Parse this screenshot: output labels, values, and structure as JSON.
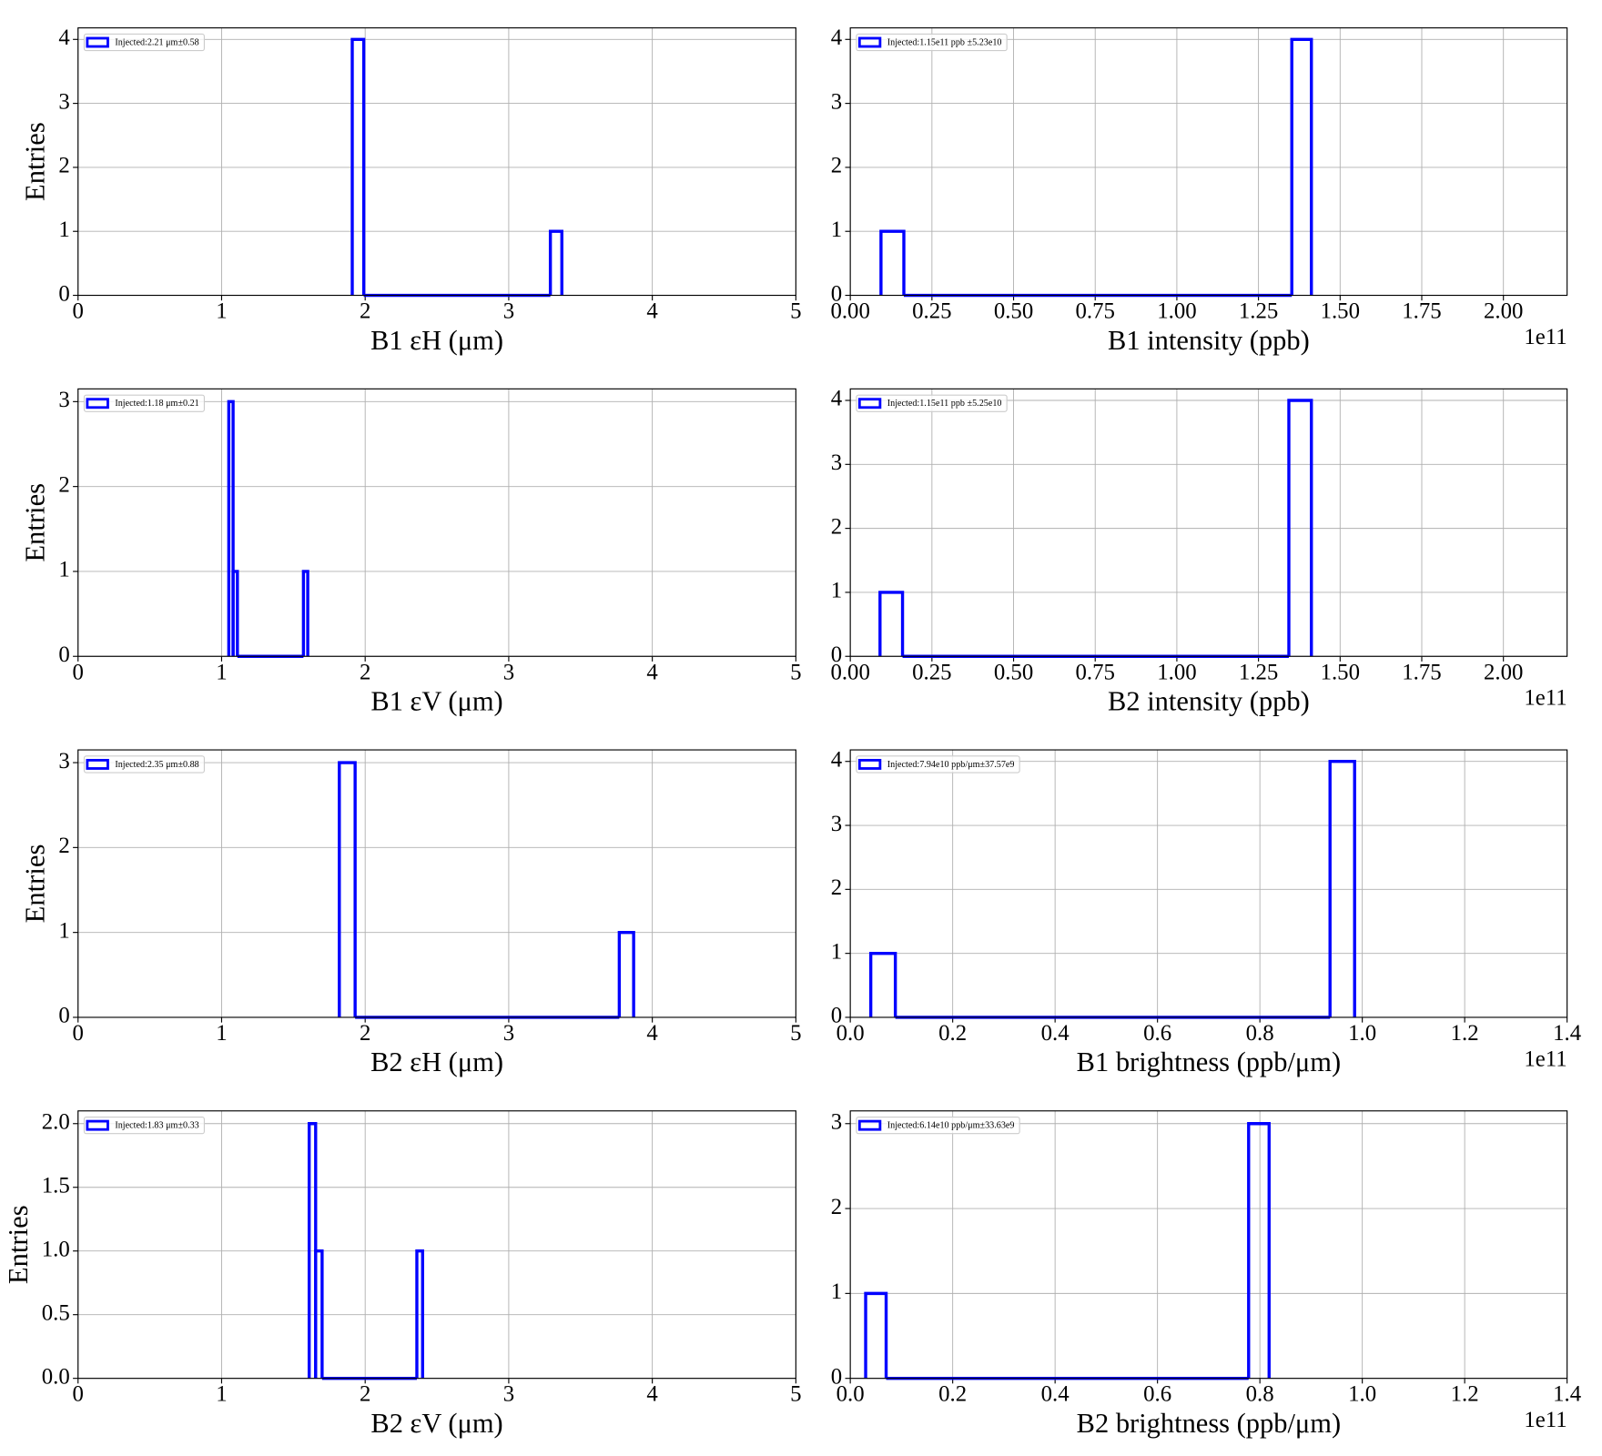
{
  "chart_data": [
    {
      "type": "histogram",
      "xlabel": "B1 εH (μm)",
      "ylabel": "Entries",
      "bins": [
        1.91,
        1.99,
        3.29,
        3.37
      ],
      "series": [
        {
          "name": "Injected:2.21 μm±0.58",
          "color": "#0000ff",
          "values": [
            4,
            0,
            1
          ]
        }
      ],
      "xlim": [
        0,
        5
      ],
      "ylim": [
        0,
        4.18
      ],
      "xticks": [
        0,
        1,
        2,
        3,
        4,
        5
      ],
      "yticks": [
        0,
        1,
        2,
        3,
        4
      ],
      "grid": true,
      "legend": "upper left"
    },
    {
      "type": "histogram",
      "xlabel": "B1 intensity (ppb)",
      "offset_label": "1e11",
      "bins": [
        0.094,
        0.164,
        1.352,
        1.412
      ],
      "series": [
        {
          "name": "Injected:1.15e11 ppb ±5.23e10",
          "color": "#0000ff",
          "values": [
            1,
            0,
            4
          ]
        }
      ],
      "xlim": [
        0,
        2.195
      ],
      "ylim": [
        0,
        4.18
      ],
      "xticks": [
        {
          "value": 0,
          "label": "0.00"
        },
        0.25,
        {
          "value": 0.5,
          "label": "0.50"
        },
        0.75,
        {
          "value": 1,
          "label": "1.00"
        },
        1.25,
        {
          "value": 1.5,
          "label": "1.50"
        },
        1.75,
        {
          "value": 2,
          "label": "2.00"
        }
      ],
      "yticks": [
        0,
        1,
        2,
        3,
        4
      ],
      "grid": true,
      "legend": "upper left"
    },
    {
      "type": "histogram",
      "xlabel": "B1 εV (μm)",
      "ylabel": "Entries",
      "bins": [
        1.05,
        1.08,
        1.11,
        1.57,
        1.6
      ],
      "series": [
        {
          "name": "Injected:1.18 μm±0.21",
          "color": "#0000ff",
          "values": [
            3,
            1,
            0,
            1
          ]
        }
      ],
      "xlim": [
        0,
        5
      ],
      "ylim": [
        0,
        3.15
      ],
      "xticks": [
        0,
        1,
        2,
        3,
        4,
        5
      ],
      "yticks": [
        0,
        1,
        2,
        3
      ],
      "grid": true,
      "legend": "upper left"
    },
    {
      "type": "histogram",
      "xlabel": "B2 intensity (ppb)",
      "offset_label": "1e11",
      "bins": [
        0.091,
        0.16,
        1.343,
        1.412
      ],
      "series": [
        {
          "name": "Injected:1.15e11 ppb ±5.25e10",
          "color": "#0000ff",
          "values": [
            1,
            0,
            4
          ]
        }
      ],
      "xlim": [
        0,
        2.195
      ],
      "ylim": [
        0,
        4.18
      ],
      "xticks": [
        {
          "value": 0,
          "label": "0.00"
        },
        0.25,
        {
          "value": 0.5,
          "label": "0.50"
        },
        0.75,
        {
          "value": 1,
          "label": "1.00"
        },
        1.25,
        {
          "value": 1.5,
          "label": "1.50"
        },
        1.75,
        {
          "value": 2,
          "label": "2.00"
        }
      ],
      "yticks": [
        0,
        1,
        2,
        3,
        4
      ],
      "grid": true,
      "legend": "upper left"
    },
    {
      "type": "histogram",
      "xlabel": "B2 εH (μm)",
      "ylabel": "Entries",
      "bins": [
        1.82,
        1.93,
        3.77,
        3.87
      ],
      "series": [
        {
          "name": "Injected:2.35 μm±0.88",
          "color": "#0000ff",
          "values": [
            3,
            0,
            1
          ]
        }
      ],
      "xlim": [
        0,
        5
      ],
      "ylim": [
        0,
        3.15
      ],
      "xticks": [
        0,
        1,
        2,
        3,
        4,
        5
      ],
      "yticks": [
        0,
        1,
        2,
        3
      ],
      "grid": true,
      "legend": "upper left"
    },
    {
      "type": "histogram",
      "xlabel": "B1 brightness (ppb/μm)",
      "offset_label": "1e11",
      "bins": [
        0.04,
        0.088,
        0.937,
        0.985
      ],
      "series": [
        {
          "name": "Injected:7.94e10 ppb/μm±37.57e9",
          "color": "#0000ff",
          "values": [
            1,
            0,
            4
          ]
        }
      ],
      "xlim": [
        0,
        1.4
      ],
      "ylim": [
        0,
        4.18
      ],
      "xticks": [
        {
          "value": 0,
          "label": "0.0"
        },
        0.2,
        0.4,
        0.6,
        0.8,
        {
          "value": 1,
          "label": "1.0"
        },
        1.2,
        1.4
      ],
      "yticks": [
        0,
        1,
        2,
        3,
        4
      ],
      "grid": true,
      "legend": "upper left"
    },
    {
      "type": "histogram",
      "xlabel": "B2 εV (μm)",
      "ylabel": "Entries",
      "bins": [
        1.61,
        1.655,
        1.7,
        2.36,
        2.4
      ],
      "series": [
        {
          "name": "Injected:1.83 μm±0.33",
          "color": "#0000ff",
          "values": [
            2,
            1,
            0,
            1
          ]
        }
      ],
      "xlim": [
        0,
        5
      ],
      "ylim": [
        0,
        2.1
      ],
      "xticks": [
        0,
        1,
        2,
        3,
        4,
        5
      ],
      "yticks": [
        {
          "value": 0,
          "label": "0.0"
        },
        0.5,
        {
          "value": 1,
          "label": "1.0"
        },
        1.5,
        {
          "value": 2,
          "label": "2.0"
        }
      ],
      "grid": true,
      "legend": "upper left"
    },
    {
      "type": "histogram",
      "xlabel": "B2 brightness (ppb/μm)",
      "offset_label": "1e11",
      "bins": [
        0.03,
        0.07,
        0.778,
        0.818
      ],
      "series": [
        {
          "name": "Injected:6.14e10 ppb/μm±33.63e9",
          "color": "#0000ff",
          "values": [
            1,
            0,
            3
          ]
        }
      ],
      "xlim": [
        0,
        1.4
      ],
      "ylim": [
        0,
        3.15
      ],
      "xticks": [
        {
          "value": 0,
          "label": "0.0"
        },
        0.2,
        0.4,
        0.6,
        0.8,
        {
          "value": 1,
          "label": "1.0"
        },
        1.2,
        1.4
      ],
      "yticks": [
        0,
        1,
        2,
        3
      ],
      "grid": true,
      "legend": "upper left"
    }
  ]
}
